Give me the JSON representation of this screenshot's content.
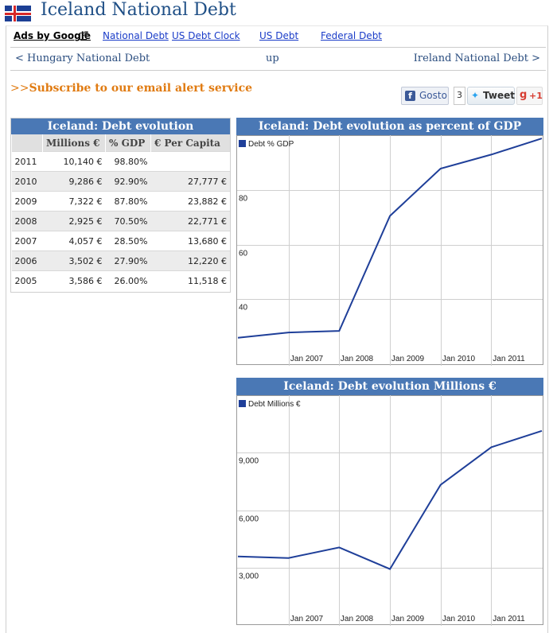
{
  "header": {
    "title": "Iceland National Debt",
    "flag_icon": "iceland-flag-icon"
  },
  "ads": {
    "label": "Ads by Google",
    "links": [
      "National Debt",
      "US Debt Clock",
      "US Debt",
      "Federal Debt"
    ]
  },
  "nav": {
    "prev": "< Hungary National Debt",
    "up": "up",
    "next": "Ireland National Debt >"
  },
  "subscribe": {
    "prefix": ">>",
    "label": "Subscribe to our email alert service"
  },
  "social": {
    "facebook_label": "Gosto",
    "facebook_count": "3",
    "tweet_label": "Tweet",
    "gplus_label": "+1"
  },
  "debt_table": {
    "title": "Iceland: Debt evolution",
    "columns": [
      "",
      "Millions €",
      "% GDP",
      "€ Per Capita"
    ],
    "rows": [
      [
        "2011",
        "10,140 €",
        "98.80%",
        ""
      ],
      [
        "2010",
        "9,286 €",
        "92.90%",
        "27,777 €"
      ],
      [
        "2009",
        "7,322 €",
        "87.80%",
        "23,882 €"
      ],
      [
        "2008",
        "2,925 €",
        "70.50%",
        "22,771 €"
      ],
      [
        "2007",
        "4,057 €",
        "28.50%",
        "13,680 €"
      ],
      [
        "2006",
        "3,502 €",
        "27.90%",
        "12,220 €"
      ],
      [
        "2005",
        "3,586 €",
        "26.00%",
        "11,518 €"
      ]
    ]
  },
  "colors": {
    "accent": "#4a78b5",
    "series": "#1f3f99",
    "subscribe": "#e07b12",
    "link": "#1a3cc8"
  },
  "chart_data": [
    {
      "type": "line",
      "title": "Iceland: Debt evolution as percent of GDP",
      "x": [
        "2006-01-01",
        "2007-01-01",
        "2008-01-01",
        "2009-01-01",
        "2010-01-01",
        "2011-01-01",
        "2012-01-01"
      ],
      "x_tick_labels": [
        "Jan 2007",
        "Jan 2008",
        "Jan 2009",
        "Jan 2010",
        "Jan 2011"
      ],
      "x_tick_dates": [
        "2007-01-01",
        "2008-01-01",
        "2009-01-01",
        "2010-01-01",
        "2011-01-01"
      ],
      "xlim": [
        "2006-01-01",
        "2012-01-01"
      ],
      "series": [
        {
          "name": "Debt % GDP",
          "values": [
            26.0,
            27.9,
            28.5,
            70.5,
            87.8,
            92.9,
            98.8
          ]
        }
      ],
      "y_ticks": [
        40,
        60,
        80
      ],
      "ylim": [
        23,
        100
      ],
      "grid": true,
      "legend": "top-left"
    },
    {
      "type": "line",
      "title": "Iceland: Debt evolution Millions €",
      "x": [
        "2006-01-01",
        "2007-01-01",
        "2008-01-01",
        "2009-01-01",
        "2010-01-01",
        "2011-01-01",
        "2012-01-01"
      ],
      "x_tick_labels": [
        "Jan 2007",
        "Jan 2008",
        "Jan 2009",
        "Jan 2010",
        "Jan 2011"
      ],
      "x_tick_dates": [
        "2007-01-01",
        "2008-01-01",
        "2009-01-01",
        "2010-01-01",
        "2011-01-01"
      ],
      "xlim": [
        "2006-01-01",
        "2012-01-01"
      ],
      "series": [
        {
          "name": "Debt Millions €",
          "values": [
            3586,
            3502,
            4057,
            2925,
            7322,
            9286,
            10140
          ]
        }
      ],
      "y_ticks": [
        3000,
        6000,
        9000
      ],
      "y_tick_labels": [
        "3,000",
        "6,000",
        "9,000"
      ],
      "ylim": [
        1000,
        12000
      ],
      "grid": true,
      "legend": "top-left"
    }
  ]
}
